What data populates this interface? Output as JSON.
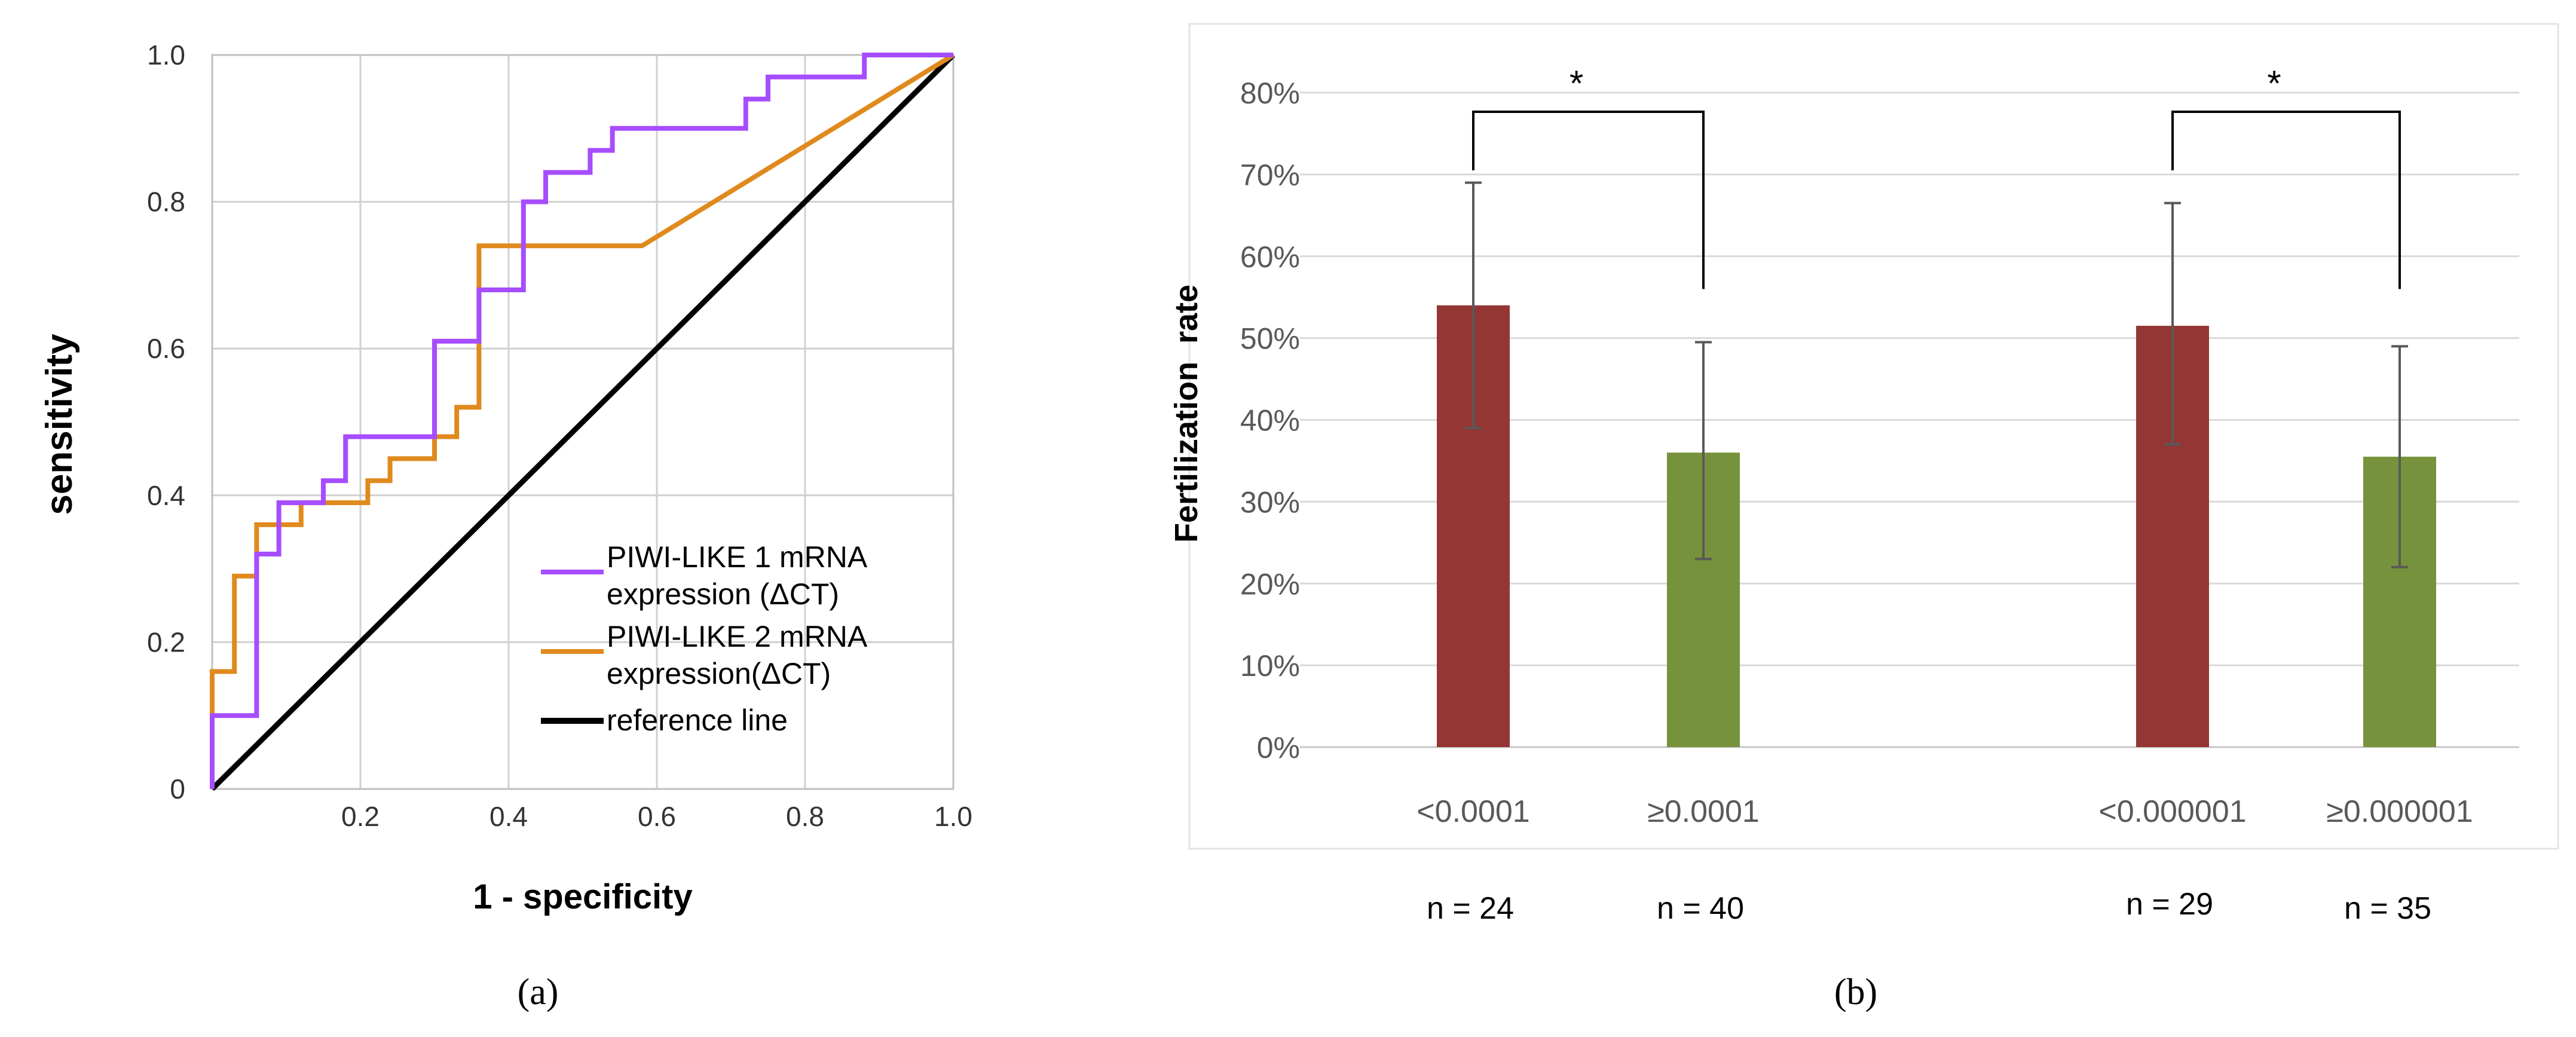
{
  "chart_data": [
    {
      "panel_label": "(a)",
      "type": "line",
      "title": "",
      "xlabel": "1 - specificity",
      "ylabel": "sensitivity",
      "xlim": [
        0,
        1
      ],
      "ylim": [
        0,
        1
      ],
      "x_tick_labels": [
        "0.2",
        "0.4",
        "0.6",
        "0.8",
        "1.0"
      ],
      "y_tick_labels": [
        "0",
        "0.2",
        "0.4",
        "0.6",
        "0.8",
        "1.0"
      ],
      "grid": true,
      "legend_position": "bottom-right",
      "series": [
        {
          "name_lines": [
            "PIWI-LIKE 1 mRNA",
            "expression (ΔCT)"
          ],
          "color": "#a64dff",
          "points": [
            [
              0,
              0
            ],
            [
              0,
              0.1
            ],
            [
              0.06,
              0.1
            ],
            [
              0.06,
              0.32
            ],
            [
              0.09,
              0.32
            ],
            [
              0.09,
              0.39
            ],
            [
              0.15,
              0.39
            ],
            [
              0.15,
              0.42
            ],
            [
              0.18,
              0.42
            ],
            [
              0.18,
              0.48
            ],
            [
              0.3,
              0.48
            ],
            [
              0.3,
              0.61
            ],
            [
              0.36,
              0.61
            ],
            [
              0.36,
              0.68
            ],
            [
              0.42,
              0.68
            ],
            [
              0.42,
              0.8
            ],
            [
              0.45,
              0.8
            ],
            [
              0.45,
              0.84
            ],
            [
              0.51,
              0.84
            ],
            [
              0.51,
              0.87
            ],
            [
              0.54,
              0.87
            ],
            [
              0.54,
              0.9
            ],
            [
              0.72,
              0.9
            ],
            [
              0.72,
              0.94
            ],
            [
              0.75,
              0.94
            ],
            [
              0.75,
              0.97
            ],
            [
              0.88,
              0.97
            ],
            [
              0.88,
              1.0
            ],
            [
              1.0,
              1.0
            ]
          ]
        },
        {
          "name_lines": [
            "PIWI-LIKE 2 mRNA",
            "expression(ΔCT)"
          ],
          "color": "#e08a1e",
          "points": [
            [
              0,
              0
            ],
            [
              0,
              0.16
            ],
            [
              0.03,
              0.16
            ],
            [
              0.03,
              0.29
            ],
            [
              0.06,
              0.29
            ],
            [
              0.06,
              0.36
            ],
            [
              0.12,
              0.36
            ],
            [
              0.12,
              0.39
            ],
            [
              0.21,
              0.39
            ],
            [
              0.21,
              0.42
            ],
            [
              0.24,
              0.42
            ],
            [
              0.24,
              0.45
            ],
            [
              0.3,
              0.45
            ],
            [
              0.3,
              0.48
            ],
            [
              0.33,
              0.48
            ],
            [
              0.33,
              0.52
            ],
            [
              0.36,
              0.52
            ],
            [
              0.36,
              0.74
            ],
            [
              0.58,
              0.74
            ],
            [
              1.0,
              1.0
            ]
          ]
        },
        {
          "name_lines": [
            "reference line"
          ],
          "color": "#000000",
          "points": [
            [
              0,
              0
            ],
            [
              1,
              1
            ]
          ]
        }
      ]
    },
    {
      "panel_label": "(b)",
      "type": "bar",
      "title": "",
      "xlabel": "",
      "ylabel": "Fertilization  rate",
      "ylim": [
        0,
        80
      ],
      "y_tick_labels": [
        "0%",
        "10%",
        "20%",
        "30%",
        "40%",
        "50%",
        "60%",
        "70%",
        "80%"
      ],
      "grid": true,
      "colors": {
        "low": "#943634",
        "high": "#76923c"
      },
      "bars": [
        {
          "category": "<0.0001",
          "n_label": "n = 24",
          "value": 54,
          "err_low": 39,
          "err_high": 69,
          "color_key": "low"
        },
        {
          "category": "≥0.0001",
          "n_label": "n = 40",
          "value": 36,
          "err_low": 23,
          "err_high": 49.5,
          "color_key": "high"
        },
        {
          "category": "<0.000001",
          "n_label": "n = 29",
          "value": 51.5,
          "err_low": 37,
          "err_high": 66.5,
          "color_key": "low"
        },
        {
          "category": "≥0.000001",
          "n_label": "n = 35",
          "value": 35.5,
          "err_low": 22,
          "err_high": 49,
          "color_key": "high"
        }
      ],
      "significance": [
        {
          "from": 0,
          "to": 1,
          "label": "*"
        },
        {
          "from": 2,
          "to": 3,
          "label": "*"
        }
      ]
    }
  ]
}
